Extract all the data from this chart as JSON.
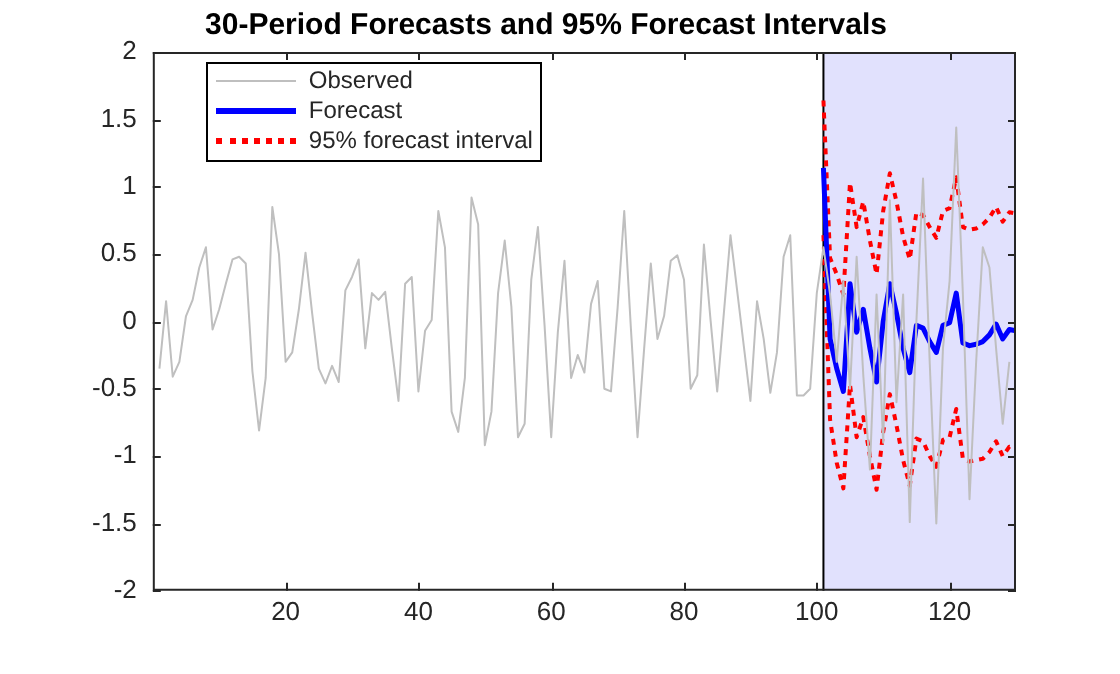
{
  "chart_data": {
    "type": "line",
    "title": "30-Period Forecasts and 95% Forecast Intervals",
    "xlim": [
      0,
      130
    ],
    "xticks": [
      20,
      40,
      60,
      80,
      100,
      120
    ],
    "ylim": [
      -2,
      2
    ],
    "yticks": [
      -2,
      -1.5,
      -1,
      -0.5,
      0,
      0.5,
      1,
      1.5,
      2
    ],
    "legend": "top left",
    "marker": "none",
    "bands": [
      {
        "axis": "x",
        "from": 101,
        "to": 130,
        "color": "#e1e1fd"
      }
    ],
    "ref_lines": [
      {
        "axis": "x",
        "value": 101,
        "color": "#000000"
      }
    ],
    "series": [
      {
        "name": "Observed",
        "color": "#bfbfbf",
        "line_style": "solid",
        "x": [
          1,
          2,
          3,
          4,
          5,
          6,
          7,
          8,
          9,
          10,
          11,
          12,
          13,
          14,
          15,
          16,
          17,
          18,
          19,
          20,
          21,
          22,
          23,
          24,
          25,
          26,
          27,
          28,
          29,
          30,
          31,
          32,
          33,
          34,
          35,
          36,
          37,
          38,
          39,
          40,
          41,
          42,
          43,
          44,
          45,
          46,
          47,
          48,
          49,
          50,
          51,
          52,
          53,
          54,
          55,
          56,
          57,
          58,
          59,
          60,
          61,
          62,
          63,
          64,
          65,
          66,
          67,
          68,
          69,
          70,
          71,
          72,
          73,
          74,
          75,
          76,
          77,
          78,
          79,
          80,
          81,
          82,
          83,
          84,
          85,
          86,
          87,
          88,
          89,
          90,
          91,
          92,
          93,
          94,
          95,
          96,
          97,
          98,
          99,
          100,
          101,
          102,
          103,
          104,
          105,
          106,
          107,
          108,
          109,
          110,
          111,
          112,
          113,
          114,
          115,
          116,
          117,
          118,
          119,
          120,
          121,
          122,
          123,
          124,
          125,
          126,
          127,
          128,
          129
        ],
        "values": [
          -0.35,
          0.15,
          -0.41,
          -0.3,
          0.04,
          0.16,
          0.4,
          0.55,
          -0.06,
          0.09,
          0.28,
          0.46,
          0.48,
          0.43,
          -0.37,
          -0.81,
          -0.42,
          0.85,
          0.5,
          -0.3,
          -0.23,
          0.09,
          0.51,
          0.06,
          -0.35,
          -0.46,
          -0.33,
          -0.45,
          0.23,
          0.33,
          0.46,
          -0.2,
          0.21,
          0.16,
          0.22,
          -0.2,
          -0.59,
          0.28,
          0.33,
          -0.52,
          -0.07,
          0.01,
          0.82,
          0.55,
          -0.67,
          -0.82,
          -0.42,
          0.92,
          0.72,
          -0.92,
          -0.67,
          0.21,
          0.6,
          0.11,
          -0.86,
          -0.76,
          0.31,
          0.7,
          -0.03,
          -0.86,
          -0.08,
          0.45,
          -0.42,
          -0.25,
          -0.38,
          0.13,
          0.3,
          -0.5,
          -0.52,
          0.1,
          0.82,
          -0.05,
          -0.86,
          -0.2,
          0.43,
          -0.13,
          0.04,
          0.45,
          0.49,
          0.31,
          -0.5,
          -0.4,
          0.57,
          0.01,
          -0.52,
          0.06,
          0.64,
          0.23,
          -0.18,
          -0.59,
          0.15,
          -0.13,
          -0.53,
          -0.23,
          0.48,
          0.64,
          -0.55,
          -0.55,
          -0.5,
          0.21,
          0.55,
          0.2,
          -0.3,
          0.3,
          -0.5,
          0.48,
          -0.4,
          -1.1,
          0.2,
          -0.9,
          0.9,
          -0.6,
          0.2,
          -1.49,
          0.0,
          1.06,
          -0.3,
          -1.5,
          -0.2,
          0.3,
          1.44,
          0.2,
          -1.32,
          -0.3,
          0.55,
          0.4,
          -0.2,
          -0.76,
          -0.3
        ]
      },
      {
        "name": "Forecast",
        "color": "#0000ff",
        "line_style": "solid",
        "x": [
          101,
          102,
          103,
          104,
          105,
          106,
          107,
          108,
          109,
          110,
          111,
          112,
          113,
          114,
          115,
          116,
          117,
          118,
          119,
          120,
          121,
          122,
          123,
          124,
          125,
          126,
          127,
          128,
          129,
          130
        ],
        "values": [
          1.14,
          -0.13,
          -0.35,
          -0.52,
          0.28,
          -0.08,
          0.09,
          -0.2,
          -0.45,
          0.0,
          0.28,
          0.06,
          -0.2,
          -0.38,
          -0.03,
          -0.05,
          -0.15,
          -0.23,
          -0.03,
          -0.01,
          0.21,
          -0.16,
          -0.18,
          -0.17,
          -0.15,
          -0.1,
          -0.02,
          -0.13,
          -0.06,
          -0.07
        ]
      },
      {
        "name": "95% forecast interval",
        "color": "#ff0000",
        "line_style": "dotted",
        "x": [
          101,
          102,
          103,
          104,
          105,
          106,
          107,
          108,
          109,
          110,
          111,
          112,
          113,
          114,
          115,
          116,
          117,
          118,
          119,
          120,
          121,
          122,
          123,
          124,
          125,
          126,
          127,
          128,
          129,
          130
        ],
        "values": [
          1.64,
          0.47,
          0.35,
          0.2,
          1.03,
          0.7,
          0.89,
          0.6,
          0.35,
          0.82,
          1.1,
          0.89,
          0.63,
          0.46,
          0.81,
          0.79,
          0.7,
          0.62,
          0.82,
          0.84,
          1.07,
          0.7,
          0.68,
          0.69,
          0.72,
          0.77,
          0.85,
          0.74,
          0.81,
          0.8
        ]
      },
      {
        "color": "#ff0000",
        "line_style": "dotted",
        "x": [
          101,
          102,
          103,
          104,
          105,
          106,
          107,
          108,
          109,
          110,
          111,
          112,
          113,
          114,
          115,
          116,
          117,
          118,
          119,
          120,
          121,
          122,
          123,
          124,
          125,
          126,
          127,
          128,
          129,
          130
        ],
        "values": [
          0.64,
          -0.73,
          -1.05,
          -1.24,
          -0.47,
          -0.86,
          -0.71,
          -1.0,
          -1.25,
          -0.82,
          -0.54,
          -0.77,
          -1.03,
          -1.22,
          -0.87,
          -0.89,
          -1.0,
          -1.08,
          -0.88,
          -0.86,
          -0.65,
          -1.02,
          -1.04,
          -1.03,
          -1.02,
          -0.97,
          -0.89,
          -1.0,
          -0.93,
          -0.94
        ]
      }
    ]
  }
}
